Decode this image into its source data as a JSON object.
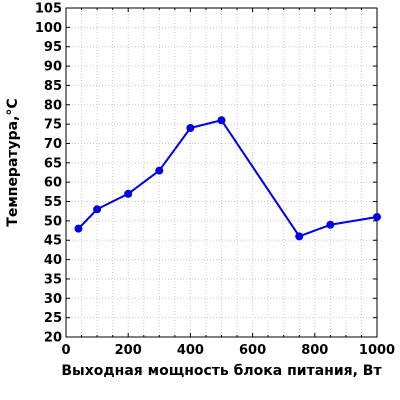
{
  "chart_data": {
    "type": "line",
    "title": "",
    "xlabel": "Выходная мощность блока питания, Вт",
    "ylabel": "Температура,°C",
    "xlim": [
      0,
      1000
    ],
    "ylim": [
      20,
      105
    ],
    "x_ticks": [
      0,
      200,
      400,
      600,
      800,
      1000
    ],
    "y_ticks": [
      20,
      25,
      30,
      35,
      40,
      45,
      50,
      55,
      60,
      65,
      70,
      75,
      80,
      85,
      90,
      95,
      100,
      105
    ],
    "grid": true,
    "legend": "none",
    "series": [
      {
        "color": "#0000e6",
        "x": [
          40,
          100,
          200,
          300,
          400,
          500,
          750,
          850,
          1000
        ],
        "y": [
          48,
          53,
          57,
          63,
          74,
          76,
          46,
          49,
          51
        ]
      }
    ]
  }
}
